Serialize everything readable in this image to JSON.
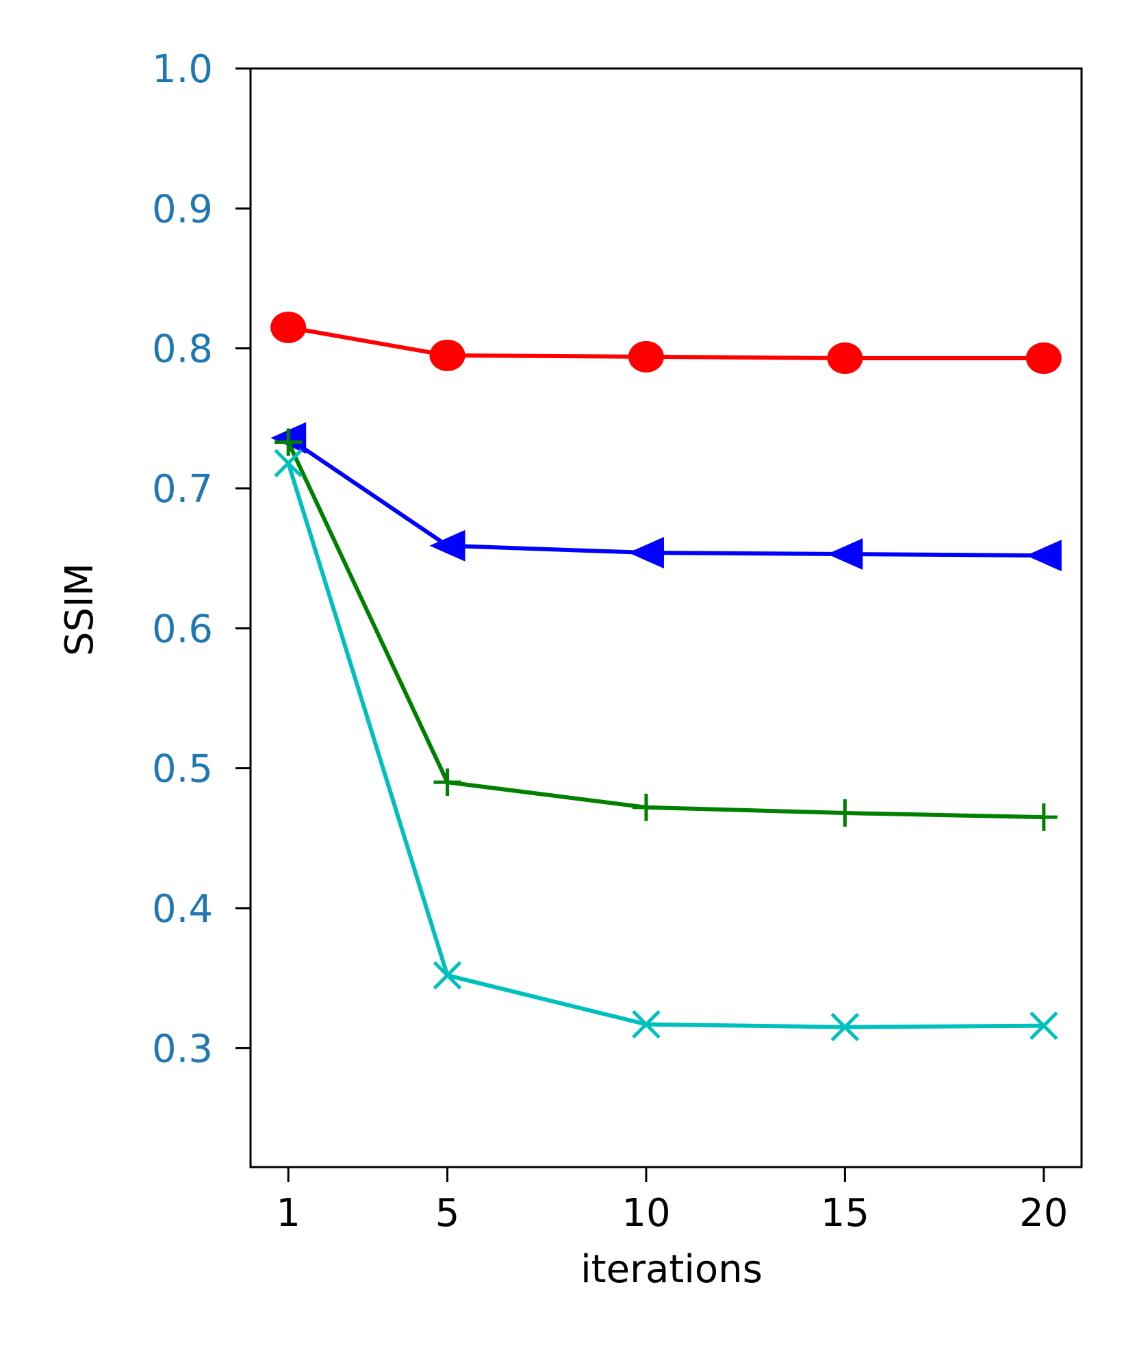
{
  "chart_data": {
    "type": "line",
    "title": "",
    "xlabel": "iterations",
    "ylabel": "SSIM",
    "x": [
      1,
      5,
      10,
      15,
      20
    ],
    "x_tick_labels": [
      "1",
      "5",
      "10",
      "15",
      "20"
    ],
    "xlim": [
      0.05,
      20.95
    ],
    "y_ticks": [
      0.3,
      0.4,
      0.5,
      0.6,
      0.7,
      0.8,
      0.9,
      1.0
    ],
    "y_tick_labels": [
      "0.3",
      "0.4",
      "0.5",
      "0.6",
      "0.7",
      "0.8",
      "0.9",
      "1.0"
    ],
    "ylim": [
      0.215,
      1.0
    ],
    "grid": false,
    "legend": "none",
    "y_tick_label_color": "#1f77b4",
    "series": [
      {
        "color": "#ff0000",
        "marker": "circle",
        "values": [
          0.815,
          0.795,
          0.794,
          0.793,
          0.793
        ]
      },
      {
        "color": "#0000ff",
        "marker": "triangle-left",
        "values": [
          0.736,
          0.659,
          0.654,
          0.653,
          0.652
        ]
      },
      {
        "color": "#008000",
        "marker": "plus",
        "values": [
          0.733,
          0.49,
          0.472,
          0.468,
          0.465
        ]
      },
      {
        "color": "#00bfbf",
        "marker": "x",
        "values": [
          0.718,
          0.352,
          0.317,
          0.315,
          0.316
        ]
      }
    ]
  }
}
